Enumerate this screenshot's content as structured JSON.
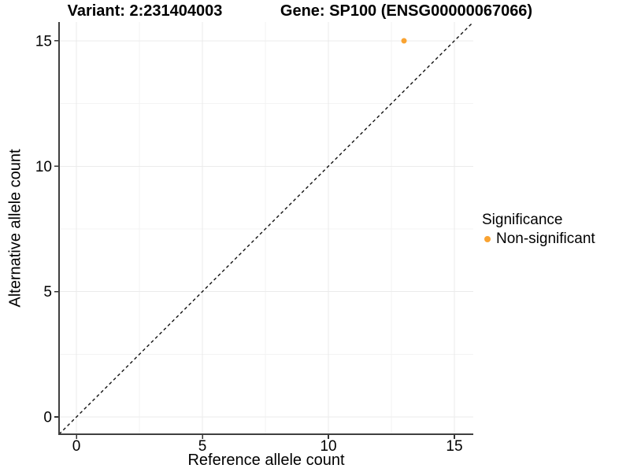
{
  "header": {
    "title_variant": "Variant: 2:231404003",
    "title_gene": "Gene: SP100 (ENSG00000067066)"
  },
  "colors": {
    "point": "#F9A332",
    "axis_line": "#3F3F3F",
    "tick_mark": "#333333",
    "grid_major": "#EBEBEB",
    "grid_minor": "#F3F3F3",
    "reference_line": "#111111",
    "background": "#FFFFFF",
    "text": "#000000"
  },
  "chart_data": {
    "type": "scatter",
    "title": "Variant: 2:231404003    Gene: SP100 (ENSG00000067066)",
    "xlabel": "Reference allele count",
    "ylabel": "Alternative allele count",
    "xlim": [
      -0.69,
      15.75
    ],
    "ylim": [
      -0.69,
      15.75
    ],
    "x_ticks": [
      0,
      5,
      10,
      15
    ],
    "y_ticks": [
      0,
      5,
      10,
      15
    ],
    "x_minor_ticks": [
      2.5,
      7.5,
      12.5
    ],
    "y_minor_ticks": [
      2.5,
      7.5,
      12.5
    ],
    "grid": true,
    "reference_line": {
      "type": "identity",
      "style": "dashed",
      "from": [
        -0.69,
        -0.69
      ],
      "to": [
        15.75,
        15.75
      ]
    },
    "series": [
      {
        "name": "Non-significant",
        "color": "#F9A332",
        "points": [
          {
            "x": 13,
            "y": 15
          }
        ]
      }
    ],
    "legend": {
      "title": "Significance",
      "position": "right",
      "entries": [
        {
          "label": "Non-significant",
          "color": "#F9A332"
        }
      ]
    }
  }
}
